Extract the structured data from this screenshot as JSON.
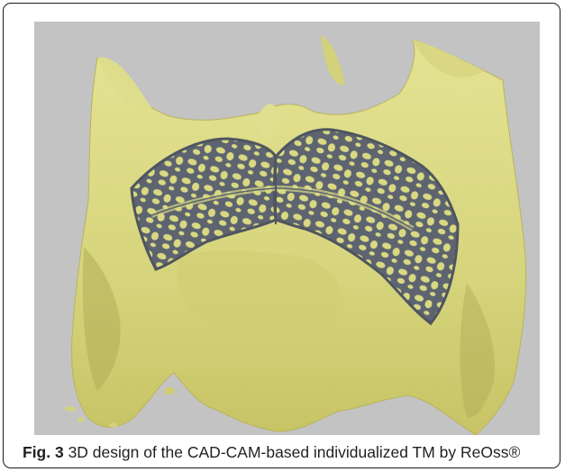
{
  "figure": {
    "image_description": "3D surface model of a maxilla (yellow) with a titanium mesh lattice (grey) placed over the alveolar ridge",
    "colors": {
      "background": "#c3c3c3",
      "bone": "#d9d983",
      "bone_shadow": "#a8a452",
      "mesh": "#5d6470"
    }
  },
  "caption": {
    "label": "Fig. 3",
    "text": " 3D design of the CAD-CAM-based individualized TM by ReOss®"
  }
}
